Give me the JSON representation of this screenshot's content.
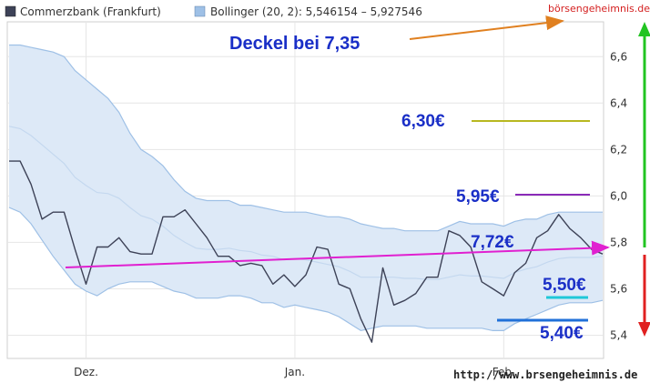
{
  "legend": {
    "series_label": "Commerzbank (Frankfurt)",
    "bands_label": "Bollinger (20, 2): 5,546154 – 5,927546"
  },
  "watermark": "börsengeheimnis.de",
  "footer_url": "http://www.brsengeheimnis.de",
  "colors": {
    "price_line": "#3d4257",
    "band_fill": "#dde9f7",
    "band_line": "#9ec0e6",
    "mid_line": "#c4d8ef",
    "grid": "#e6e6e6",
    "trend": "#e020d0",
    "annotation_text": "#1a2fc7",
    "arrow_orange": "#e08020",
    "level_630": "#b8b820",
    "level_595": "#8a2ab8",
    "level_550": "#20c8d8",
    "level_540": "#2070d8",
    "up_arrow": "#22c422",
    "down_arrow": "#e02020"
  },
  "annotations": {
    "deckel": "Deckel bei 7,35",
    "level_630": "6,30€",
    "level_595": "5,95€",
    "trend": "7,72€",
    "level_550": "5,50€",
    "level_540": "5,40€"
  },
  "chart_data": {
    "type": "line",
    "title": "",
    "xlabel": "",
    "ylabel": "",
    "ylim": [
      5.3,
      6.75
    ],
    "x_ticks": [
      {
        "label": "Dez.",
        "index": 7
      },
      {
        "label": "Jan.",
        "index": 26
      },
      {
        "label": "Feb.",
        "index": 45
      }
    ],
    "y_ticks": [
      5.4,
      5.6,
      5.8,
      6.0,
      6.2,
      6.4,
      6.6
    ],
    "y_tick_labels": [
      "5,4",
      "5,6",
      "5,8",
      "6,0",
      "6,2",
      "6,4",
      "6,6"
    ],
    "grid": true,
    "legend_position": "top-left",
    "series": [
      {
        "name": "Commerzbank (Frankfurt)",
        "values": [
          6.15,
          6.15,
          6.05,
          5.9,
          5.93,
          5.93,
          5.77,
          5.62,
          5.78,
          5.78,
          5.82,
          5.76,
          5.75,
          5.75,
          5.91,
          5.91,
          5.94,
          5.88,
          5.82,
          5.74,
          5.74,
          5.7,
          5.71,
          5.7,
          5.62,
          5.66,
          5.61,
          5.66,
          5.78,
          5.77,
          5.62,
          5.6,
          5.47,
          5.37,
          5.69,
          5.53,
          5.55,
          5.58,
          5.65,
          5.65,
          5.85,
          5.83,
          5.78,
          5.63,
          5.6,
          5.57,
          5.67,
          5.71,
          5.82,
          5.85,
          5.92,
          5.86,
          5.82,
          5.77,
          5.75
        ]
      },
      {
        "name": "Bollinger (20, 2)",
        "upper": [
          6.65,
          6.65,
          6.64,
          6.63,
          6.62,
          6.6,
          6.54,
          6.5,
          6.46,
          6.42,
          6.36,
          6.27,
          6.2,
          6.17,
          6.13,
          6.07,
          6.02,
          5.99,
          5.98,
          5.98,
          5.98,
          5.96,
          5.96,
          5.95,
          5.94,
          5.93,
          5.93,
          5.93,
          5.92,
          5.91,
          5.91,
          5.9,
          5.88,
          5.87,
          5.86,
          5.86,
          5.85,
          5.85,
          5.85,
          5.85,
          5.87,
          5.89,
          5.88,
          5.88,
          5.88,
          5.87,
          5.89,
          5.9,
          5.9,
          5.92,
          5.93,
          5.93,
          5.93,
          5.93,
          5.93
        ],
        "lower": [
          5.95,
          5.93,
          5.88,
          5.81,
          5.74,
          5.68,
          5.62,
          5.59,
          5.57,
          5.6,
          5.62,
          5.63,
          5.63,
          5.63,
          5.61,
          5.59,
          5.58,
          5.56,
          5.56,
          5.56,
          5.57,
          5.57,
          5.56,
          5.54,
          5.54,
          5.52,
          5.53,
          5.52,
          5.51,
          5.5,
          5.48,
          5.45,
          5.42,
          5.43,
          5.44,
          5.44,
          5.44,
          5.44,
          5.43,
          5.43,
          5.43,
          5.43,
          5.43,
          5.43,
          5.42,
          5.42,
          5.45,
          5.47,
          5.49,
          5.51,
          5.53,
          5.54,
          5.54,
          5.54,
          5.55
        ]
      }
    ],
    "levels": [
      6.3,
      5.95,
      5.5,
      5.4
    ]
  }
}
